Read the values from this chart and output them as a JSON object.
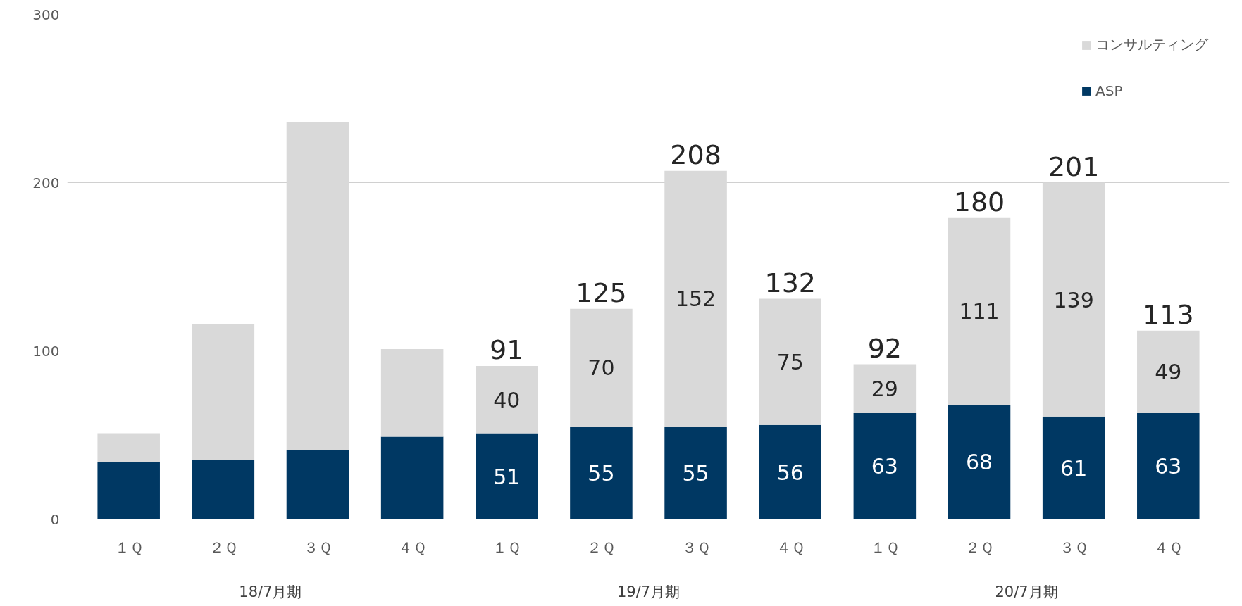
{
  "chart_data": {
    "type": "bar",
    "stacked": true,
    "categories": [
      "１Ｑ",
      "２Ｑ",
      "３Ｑ",
      "４Ｑ",
      "１Ｑ",
      "２Ｑ",
      "３Ｑ",
      "４Ｑ",
      "１Ｑ",
      "２Ｑ",
      "３Ｑ",
      "４Ｑ"
    ],
    "series": [
      {
        "name": "ASP",
        "color": "#003863",
        "values": [
          34,
          35,
          41,
          49,
          51,
          55,
          55,
          56,
          63,
          68,
          61,
          63
        ],
        "value_labels": [
          null,
          null,
          null,
          null,
          "51",
          "55",
          "55",
          "56",
          "63",
          "68",
          "61",
          "63"
        ]
      },
      {
        "name": "コンサルティング",
        "color": "#d9d9d9",
        "values": [
          17,
          81,
          195,
          52,
          40,
          70,
          152,
          75,
          29,
          111,
          139,
          49
        ],
        "value_labels": [
          null,
          null,
          null,
          null,
          "40",
          "70",
          "152",
          "75",
          "29",
          "111",
          "139",
          "49"
        ]
      }
    ],
    "totals": [
      null,
      null,
      null,
      null,
      "91",
      "125",
      "208",
      "132",
      "92",
      "180",
      "201",
      "113"
    ],
    "annotations": [
      "18/7月期",
      "19/7月期",
      "20/7月期"
    ],
    "ylim": [
      0,
      300
    ],
    "yticks": [
      0,
      100,
      200,
      300
    ],
    "grid": "y",
    "legend": "top right"
  }
}
